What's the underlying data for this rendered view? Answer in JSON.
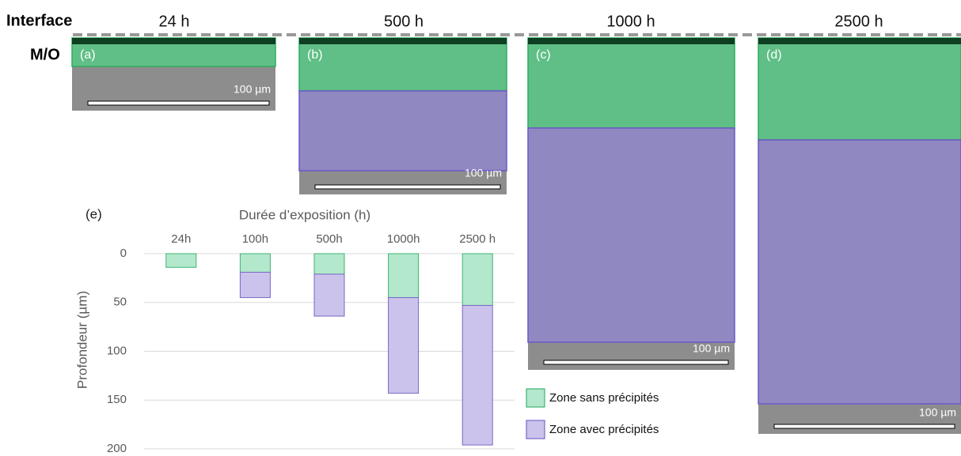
{
  "figure": {
    "row_labels": [
      "Interface",
      "M/O"
    ],
    "panels": [
      {
        "time": "24 h",
        "label": "(a)",
        "scale": "100 µm"
      },
      {
        "time": "500 h",
        "label": "(b)",
        "scale": "100 µm"
      },
      {
        "time": "1000 h",
        "label": "(c)",
        "scale": "100 µm"
      },
      {
        "time": "2500 h",
        "label": "(d)",
        "scale": "100 µm"
      }
    ]
  },
  "chart_data": {
    "type": "bar",
    "stacked": true,
    "panel_label": "(e)",
    "x_label": "Durée d’exposition (h)",
    "y_label": "Profondeur (µm)",
    "categories": [
      "24h",
      "100h",
      "500h",
      "1000h",
      "2500 h"
    ],
    "series": [
      {
        "name": "Zone sans précipités",
        "color": "#b3e8cc",
        "edge": "#3cb371",
        "values": [
          14,
          19,
          21,
          45,
          53
        ]
      },
      {
        "name": "Zone avec précipités",
        "color": "#cbc3ec",
        "edge": "#7a66c4",
        "values": [
          null,
          26,
          43,
          98,
          143
        ]
      }
    ],
    "ylim": [
      0,
      200
    ],
    "yticks": [
      0,
      50,
      100,
      150,
      200
    ],
    "y_inverted": true,
    "grid": true
  }
}
